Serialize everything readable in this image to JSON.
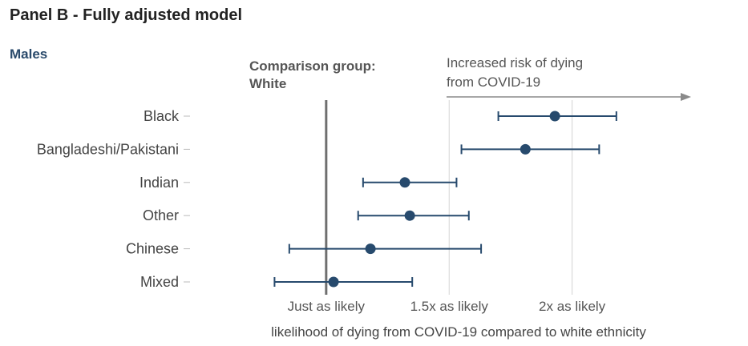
{
  "colors": {
    "marker": "#274a6d",
    "panel_title": "#222222",
    "subgroup": "#2a4a6b",
    "text": "#444444",
    "axis_text": "#555555",
    "reference_line": "#6f6f6f",
    "gridline": "#d4d4d4",
    "arrow": "#8a8a8a"
  },
  "chart_data": {
    "type": "forest",
    "title": "Panel B - Fully adjusted model",
    "subtitle": "Males",
    "comparison_label_line1": "Comparison group:",
    "comparison_label_line2": "White",
    "arrow_label_line1": "Increased risk of dying",
    "arrow_label_line2": "from COVID-19",
    "xlabel": "likelihood of dying from COVID-19 compared to white ethnicity",
    "x_ticks": [
      {
        "value": 1.0,
        "label": "Just as likely"
      },
      {
        "value": 1.5,
        "label": "1.5x as likely"
      },
      {
        "value": 2.0,
        "label": "2x as likely"
      }
    ],
    "xlim": [
      0.58,
      2.5
    ],
    "reference_value": 1.0,
    "categories": [
      "Black",
      "Bangladeshi/Pakistani",
      "Indian",
      "Other",
      "Chinese",
      "Mixed"
    ],
    "estimates": [
      1.93,
      1.81,
      1.32,
      1.34,
      1.18,
      1.03
    ],
    "lower": [
      1.7,
      1.55,
      1.15,
      1.13,
      0.85,
      0.79
    ],
    "upper": [
      2.18,
      2.11,
      1.53,
      1.58,
      1.63,
      1.35
    ]
  }
}
